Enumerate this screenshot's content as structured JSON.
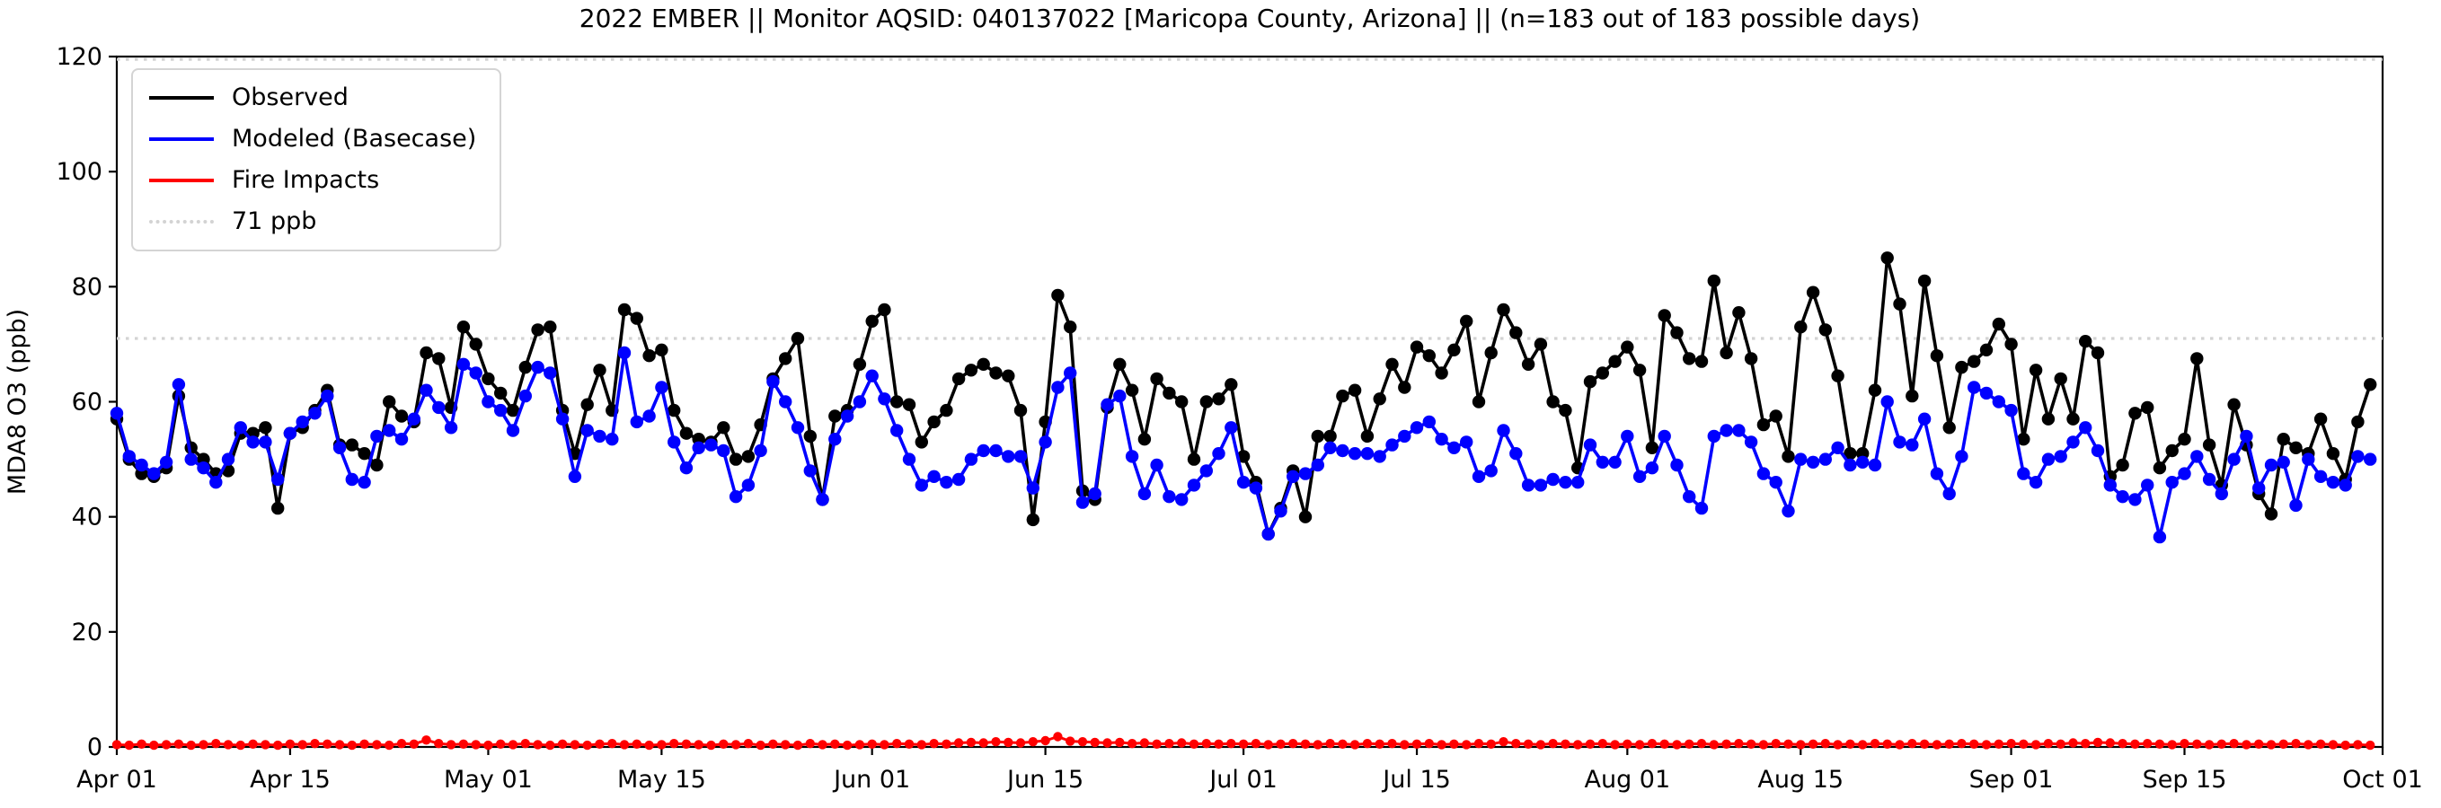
{
  "chart_data": {
    "type": "line",
    "title": "2022 EMBER || Monitor AQSID: 040137022 [Maricopa County, Arizona] || (n=183 out of 183 possible days)",
    "xlabel": "",
    "ylabel": "MDA8 O3 (ppb)",
    "ylim": [
      0,
      120
    ],
    "yticks": [
      0,
      20,
      40,
      60,
      80,
      100,
      120
    ],
    "x_range_days": 183,
    "xticks": [
      {
        "label": "Apr 01",
        "day": 0
      },
      {
        "label": "Apr 15",
        "day": 14
      },
      {
        "label": "May 01",
        "day": 30
      },
      {
        "label": "May 15",
        "day": 44
      },
      {
        "label": "Jun 01",
        "day": 61
      },
      {
        "label": "Jun 15",
        "day": 75
      },
      {
        "label": "Jul 01",
        "day": 91
      },
      {
        "label": "Jul 15",
        "day": 105
      },
      {
        "label": "Aug 01",
        "day": 122
      },
      {
        "label": "Aug 15",
        "day": 136
      },
      {
        "label": "Sep 01",
        "day": 153
      },
      {
        "label": "Sep 15",
        "day": 167
      },
      {
        "label": "Oct 01",
        "day": 183
      }
    ],
    "threshold_label": "71 ppb",
    "threshold_value": 71,
    "threshold_color": "#d3d3d3",
    "top_reference_value": 119.5,
    "grid": false,
    "legend_position": "upper-left",
    "series": [
      {
        "name": "Observed",
        "color": "#000000",
        "marker": "circle",
        "values": [
          57,
          50,
          47.5,
          47,
          48.5,
          61,
          52,
          50,
          47.5,
          48,
          54.5,
          54.5,
          55.5,
          41.5,
          54.5,
          55.5,
          58.5,
          62,
          52.5,
          52.5,
          51,
          49,
          60,
          57.5,
          56.5,
          68.5,
          67.5,
          59,
          73,
          70,
          64,
          61.5,
          58.5,
          66,
          72.5,
          73,
          58.5,
          51,
          59.5,
          65.5,
          58.5,
          76,
          74.5,
          68,
          69,
          58.5,
          54.5,
          53.5,
          53,
          55.5,
          50,
          50.5,
          56,
          64,
          67.5,
          71,
          54,
          43,
          57.5,
          58.5,
          66.5,
          74,
          76,
          60,
          59.5,
          53,
          56.5,
          58.5,
          64,
          65.5,
          66.5,
          65,
          64.5,
          58.5,
          39.5,
          56.5,
          78.5,
          73,
          44.5,
          43,
          59,
          66.5,
          62,
          53.5,
          64,
          61.5,
          60,
          50,
          60,
          60.5,
          63,
          50.5,
          46,
          37,
          41.5,
          48,
          40,
          54,
          54,
          61,
          62,
          54,
          60.5,
          66.5,
          62.5,
          69.5,
          68,
          65,
          69,
          74,
          60,
          68.5,
          76,
          72,
          66.5,
          70,
          60,
          58.5,
          48.5,
          63.5,
          65,
          67,
          69.5,
          65.5,
          52,
          75,
          72,
          67.5,
          67,
          81,
          68.5,
          75.5,
          67.5,
          56,
          57.5,
          50.5,
          73,
          79,
          72.5,
          64.5,
          51,
          51,
          62,
          85,
          77,
          61,
          81,
          68,
          55.5,
          66,
          67,
          69,
          73.5,
          70,
          53.5,
          65.5,
          57,
          64,
          57,
          70.5,
          68.5,
          47,
          49,
          58,
          59,
          48.5,
          51.5,
          53.5,
          67.5,
          52.5,
          45.5,
          59.5,
          52.5,
          44,
          40.5,
          53.5,
          52,
          51,
          57,
          51,
          46.5,
          56.5,
          63
        ]
      },
      {
        "name": "Modeled (Basecase)",
        "color": "#0000ff",
        "marker": "circle",
        "values": [
          58,
          50.5,
          49,
          47.5,
          49.5,
          63,
          50,
          48.5,
          46,
          50,
          55.5,
          53,
          53,
          46.5,
          54.5,
          56.5,
          58,
          61,
          52,
          46.5,
          46,
          54,
          55,
          53.5,
          57,
          62,
          59,
          55.5,
          66.5,
          65,
          60,
          58.5,
          55,
          61,
          66,
          65,
          57,
          47,
          55,
          54,
          53.5,
          68.5,
          56.5,
          57.5,
          62.5,
          53,
          48.5,
          52,
          52.5,
          51.5,
          43.5,
          45.5,
          51.5,
          63.5,
          60,
          55.5,
          48,
          43,
          53.5,
          57.5,
          60,
          64.5,
          60.5,
          55,
          50,
          45.5,
          47,
          46,
          46.5,
          50,
          51.5,
          51.5,
          50.5,
          50.5,
          45,
          53,
          62.5,
          65,
          42.5,
          44,
          59.5,
          61,
          50.5,
          44,
          49,
          43.5,
          43,
          45.5,
          48,
          51,
          55.5,
          46,
          45,
          37,
          41,
          47,
          47.5,
          49,
          52,
          51.5,
          51,
          51,
          50.5,
          52.5,
          54,
          55.5,
          56.5,
          53.5,
          52,
          53,
          47,
          48,
          55,
          51,
          45.5,
          45.5,
          46.5,
          46,
          46,
          52.5,
          49.5,
          49.5,
          54,
          47,
          48.5,
          54,
          49,
          43.5,
          41.5,
          54,
          55,
          55,
          53,
          47.5,
          46,
          41,
          50,
          49.5,
          50,
          52,
          49,
          49.5,
          49,
          60,
          53,
          52.5,
          57,
          47.5,
          44,
          50.5,
          62.5,
          61.5,
          60,
          58.5,
          47.5,
          46,
          50,
          50.5,
          53,
          55.5,
          51.5,
          45.5,
          43.5,
          43,
          45.5,
          36.5,
          46,
          47.5,
          50.5,
          46.5,
          44,
          50,
          54,
          45,
          49,
          49.5,
          42,
          50,
          47,
          46,
          45.5,
          50.5,
          50
        ]
      },
      {
        "name": "Fire Impacts",
        "color": "#ff0000",
        "marker": "circle",
        "values": [
          0.4,
          0.3,
          0.5,
          0.3,
          0.4,
          0.5,
          0.3,
          0.4,
          0.6,
          0.4,
          0.3,
          0.5,
          0.4,
          0.3,
          0.5,
          0.4,
          0.6,
          0.5,
          0.4,
          0.3,
          0.5,
          0.4,
          0.3,
          0.6,
          0.5,
          1.2,
          0.6,
          0.4,
          0.5,
          0.4,
          0.3,
          0.5,
          0.4,
          0.6,
          0.4,
          0.3,
          0.5,
          0.4,
          0.3,
          0.5,
          0.6,
          0.4,
          0.5,
          0.3,
          0.4,
          0.6,
          0.5,
          0.4,
          0.3,
          0.5,
          0.4,
          0.6,
          0.3,
          0.5,
          0.4,
          0.3,
          0.6,
          0.4,
          0.5,
          0.3,
          0.4,
          0.5,
          0.4,
          0.6,
          0.5,
          0.4,
          0.6,
          0.5,
          0.7,
          0.8,
          0.7,
          0.9,
          0.8,
          0.7,
          0.9,
          1.1,
          1.8,
          1.0,
          0.9,
          0.8,
          0.7,
          0.8,
          0.6,
          0.7,
          0.5,
          0.6,
          0.7,
          0.5,
          0.6,
          0.5,
          0.6,
          0.5,
          0.6,
          0.4,
          0.5,
          0.6,
          0.5,
          0.4,
          0.6,
          0.5,
          0.4,
          0.6,
          0.5,
          0.6,
          0.4,
          0.5,
          0.6,
          0.4,
          0.5,
          0.4,
          0.6,
          0.5,
          0.9,
          0.6,
          0.5,
          0.4,
          0.6,
          0.5,
          0.4,
          0.5,
          0.6,
          0.4,
          0.5,
          0.4,
          0.6,
          0.5,
          0.4,
          0.5,
          0.6,
          0.4,
          0.5,
          0.6,
          0.5,
          0.4,
          0.6,
          0.5,
          0.4,
          0.5,
          0.6,
          0.4,
          0.5,
          0.4,
          0.6,
          0.5,
          0.4,
          0.6,
          0.5,
          0.4,
          0.5,
          0.6,
          0.5,
          0.4,
          0.5,
          0.6,
          0.5,
          0.4,
          0.6,
          0.5,
          0.7,
          0.6,
          0.8,
          0.7,
          0.6,
          0.5,
          0.6,
          0.5,
          0.4,
          0.6,
          0.5,
          0.4,
          0.5,
          0.6,
          0.4,
          0.5,
          0.4,
          0.5,
          0.6,
          0.4,
          0.5,
          0.4,
          0.3,
          0.4,
          0.3
        ]
      }
    ]
  }
}
